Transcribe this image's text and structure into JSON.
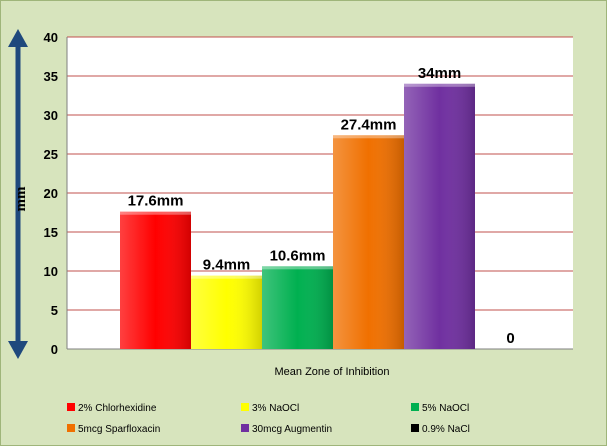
{
  "colors": {
    "background": "#d7e4bd",
    "plot_area": "#ffffff",
    "gridline": "#c0504d",
    "axis_arrow": "#1f497d"
  },
  "chart_data": {
    "type": "bar",
    "categories": [
      "2% Chlorhexidine",
      "3% NaOCl",
      "5% NaOCl",
      "5mcg Sparfloxacin",
      "30mcg Augmentin",
      "0.9% NaCl"
    ],
    "values": [
      17.6,
      9.4,
      10.6,
      27.4,
      34,
      0
    ],
    "data_labels": [
      "17.6mm",
      "9.4mm",
      "10.6mm",
      "27.4mm",
      "34mm",
      "0"
    ],
    "bar_colors": [
      "#ff0000",
      "#ffff00",
      "#00b050",
      "#f07000",
      "#7030a0",
      "#000000"
    ],
    "xlabel": "Mean Zone of Inhibition",
    "ylabel": "mm",
    "ylim": [
      0,
      40
    ],
    "yticks": [
      0,
      5,
      10,
      15,
      20,
      25,
      30,
      35,
      40
    ],
    "grid": true,
    "legend_position": "bottom"
  }
}
